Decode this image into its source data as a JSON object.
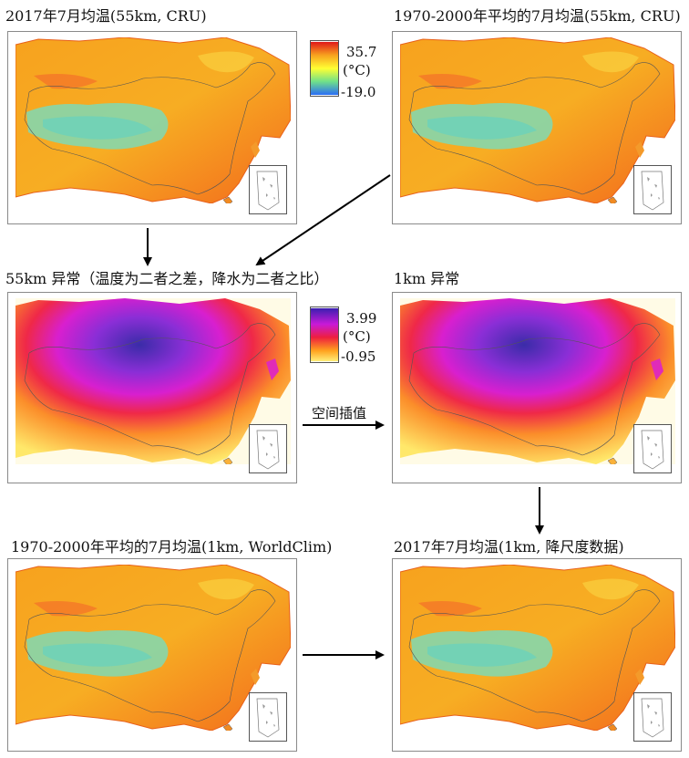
{
  "panels": {
    "p1": {
      "title": "2017年7月均温(55km, CRU)"
    },
    "p2": {
      "title": "1970-2000年平均的7月均温(55km, CRU)"
    },
    "p3": {
      "title": "55km 异常（温度为二者之差，降水为二者之比）"
    },
    "p4": {
      "title": "1km 异常"
    },
    "p5": {
      "title": "1970-2000年平均的7月均温(1km, WorldClim)"
    },
    "p6": {
      "title": "2017年7月均温(1km, 降尺度数据)"
    }
  },
  "legend_temp": {
    "max": "35.7",
    "unit": "(°C)",
    "min": "-19.0",
    "colors": [
      "#e0171a",
      "#f7a21e",
      "#ffff33",
      "#6fe08a",
      "#2a6df5"
    ]
  },
  "legend_anom": {
    "max": "3.99",
    "unit": "(°C)",
    "min": "-0.95",
    "colors": [
      "#3a1fb0",
      "#c81ad8",
      "#ee1f3e",
      "#ffa21e",
      "#ffef7a"
    ]
  },
  "arrow_label": "空间插值"
}
